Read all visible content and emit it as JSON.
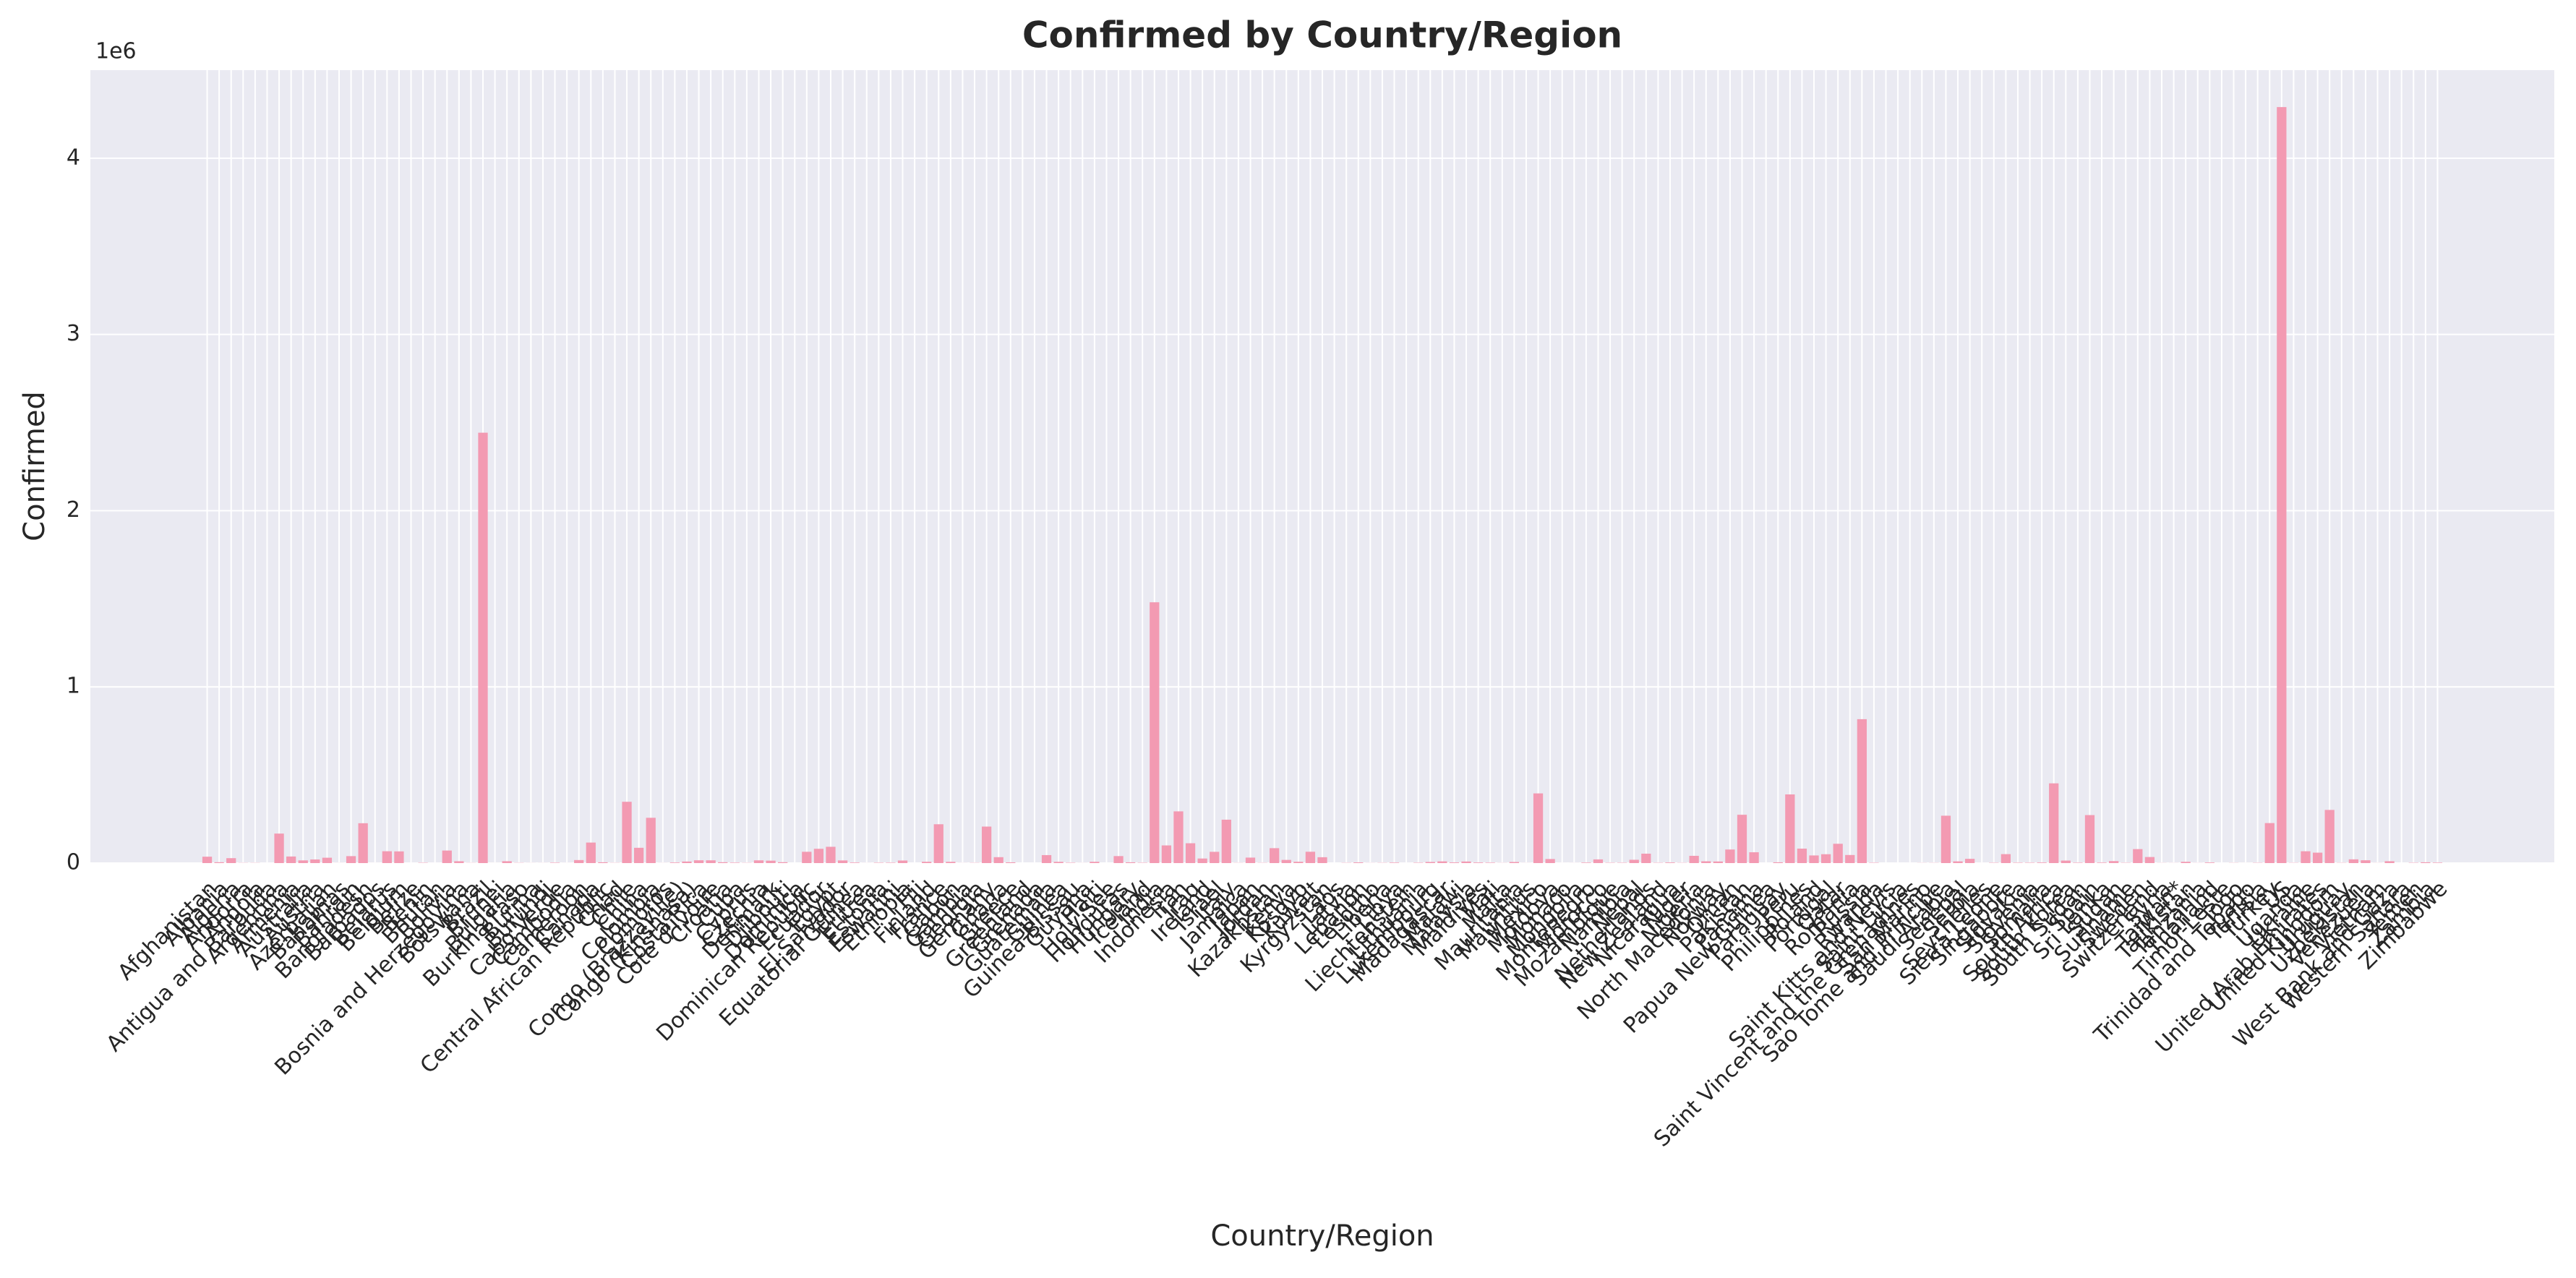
{
  "chart_data": {
    "type": "bar",
    "title": "Confirmed by Country/Region",
    "xlabel": "Country/Region",
    "ylabel": "Confirmed",
    "y_offset_label": "1e6",
    "color": "#f39ab2",
    "grid": true,
    "ylim": [
      0,
      4500000
    ],
    "yticks": [
      0,
      {
        "value": 1000000,
        "label": "1"
      },
      {
        "value": 2000000,
        "label": "2"
      },
      {
        "value": 3000000,
        "label": "3"
      },
      {
        "value": 4000000,
        "label": "4"
      }
    ],
    "categories": [
      "Afghanistan",
      "Albania",
      "Algeria",
      "Andorra",
      "Angola",
      "Antigua and Barbuda",
      "Argentina",
      "Armenia",
      "Australia",
      "Austria",
      "Azerbaijan",
      "Bahamas",
      "Bahrain",
      "Bangladesh",
      "Barbados",
      "Belarus",
      "Belgium",
      "Belize",
      "Benin",
      "Bhutan",
      "Bolivia",
      "Bosnia and Herzegovina",
      "Botswana",
      "Brazil",
      "Brunei",
      "Bulgaria",
      "Burkina Faso",
      "Burma",
      "Burundi",
      "Cabo Verde",
      "Cambodia",
      "Cameroon",
      "Canada",
      "Central African Republic",
      "Chad",
      "Chile",
      "China",
      "Colombia",
      "Comoros",
      "Congo (Brazzaville)",
      "Congo (Kinshasa)",
      "Costa Rica",
      "Cote d'Ivoire",
      "Croatia",
      "Cuba",
      "Cyprus",
      "Czechia",
      "Denmark",
      "Djibouti",
      "Dominica",
      "Dominican Republic",
      "Ecuador",
      "Egypt",
      "El Salvador",
      "Equatorial Guinea",
      "Eritrea",
      "Estonia",
      "Eswatini",
      "Ethiopia",
      "Fiji",
      "Finland",
      "France",
      "Gabon",
      "Gambia",
      "Georgia",
      "Germany",
      "Ghana",
      "Greece",
      "Greenland",
      "Grenada",
      "Guatemala",
      "Guinea",
      "Guinea-Bissau",
      "Guyana",
      "Haiti",
      "Holy See",
      "Honduras",
      "Hungary",
      "Iceland",
      "India",
      "Indonesia",
      "Iran",
      "Iraq",
      "Ireland",
      "Israel",
      "Italy",
      "Jamaica",
      "Japan",
      "Jordan",
      "Kazakhstan",
      "Kenya",
      "Kosovo",
      "Kuwait",
      "Kyrgyzstan",
      "Laos",
      "Latvia",
      "Lebanon",
      "Lesotho",
      "Liberia",
      "Libya",
      "Liechtenstein",
      "Lithuania",
      "Luxembourg",
      "Madagascar",
      "Malawi",
      "Malaysia",
      "Maldives",
      "Mali",
      "Malta",
      "Mauritania",
      "Mauritius",
      "Mexico",
      "Moldova",
      "Monaco",
      "Mongolia",
      "Montenegro",
      "Morocco",
      "Mozambique",
      "Namibia",
      "Nepal",
      "Netherlands",
      "New Zealand",
      "Nicaragua",
      "Niger",
      "Nigeria",
      "North Macedonia",
      "Norway",
      "Oman",
      "Pakistan",
      "Panama",
      "Papua New Guinea",
      "Paraguay",
      "Peru",
      "Philippines",
      "Poland",
      "Portugal",
      "Qatar",
      "Romania",
      "Russia",
      "Rwanda",
      "Saint Kitts and Nevis",
      "Saint Lucia",
      "Saint Vincent and the Grenadines",
      "San Marino",
      "Sao Tome and Principe",
      "Saudi Arabia",
      "Senegal",
      "Serbia",
      "Seychelles",
      "Sierra Leone",
      "Singapore",
      "Slovakia",
      "Slovenia",
      "Somalia",
      "South Africa",
      "South Korea",
      "South Sudan",
      "Spain",
      "Sri Lanka",
      "Sudan",
      "Suriname",
      "Sweden",
      "Switzerland",
      "Syria",
      "Taiwan*",
      "Tajikistan",
      "Tanzania",
      "Thailand",
      "Timor-Leste",
      "Togo",
      "Trinidad and Tobago",
      "Tunisia",
      "Turkey",
      "US",
      "Uganda",
      "Ukraine",
      "United Arab Emirates",
      "United Kingdom",
      "Uruguay",
      "Uzbekistan",
      "Venezuela",
      "Vietnam",
      "West Bank and Gaza",
      "Western Sahara",
      "Yemen",
      "Zambia",
      "Zimbabwe"
    ],
    "values": [
      36263,
      4880,
      27973,
      907,
      950,
      86,
      167416,
      37390,
      15303,
      20558,
      30446,
      382,
      39482,
      226225,
      110,
      67251,
      66428,
      48,
      1770,
      99,
      71181,
      10498,
      739,
      2442375,
      141,
      10621,
      1100,
      350,
      378,
      2328,
      226,
      17110,
      116458,
      4599,
      922,
      347923,
      86783,
      257101,
      354,
      3200,
      8844,
      15841,
      15655,
      4881,
      2532,
      1060,
      15516,
      13761,
      5059,
      18,
      64156,
      81161,
      92482,
      15035,
      3071,
      265,
      2034,
      2316,
      14547,
      27,
      7398,
      220352,
      7189,
      326,
      1137,
      207112,
      33624,
      4227,
      14,
      23,
      45309,
      7055,
      1954,
      389,
      7340,
      12,
      39741,
      4448,
      1854,
      1480073,
      100303,
      293606,
      112585,
      25892,
      63985,
      246286,
      853,
      31142,
      1176,
      84648,
      17975,
      7413,
      64379,
      33296,
      20,
      1219,
      3882,
      505,
      1167,
      2827,
      86,
      2019,
      6321,
      9690,
      3664,
      8904,
      3369,
      2513,
      701,
      6208,
      344,
      395489,
      23154,
      116,
      289,
      2893,
      20887,
      1748,
      1843,
      18752,
      53413,
      1557,
      3439,
      1132,
      41180,
      10213,
      9132,
      77058,
      274289,
      61442,
      62,
      4548,
      389717,
      82040,
      43402,
      50299,
      109597,
      45902,
      816680,
      1879,
      17,
      24,
      52,
      699,
      865,
      268934,
      9764,
      24141,
      114,
      1783,
      50838,
      2181,
      2087,
      3196,
      452529,
      14203,
      2305,
      272421,
      2805,
      11424,
      1483,
      79395,
      34477,
      674,
      462,
      7235,
      509,
      3297,
      24,
      874,
      148,
      1455,
      227019,
      4290259,
      1128,
      67096,
      59177,
      301708,
      1202,
      21209,
      15988,
      431,
      10621,
      10,
      1691,
      4552,
      2704
    ]
  }
}
